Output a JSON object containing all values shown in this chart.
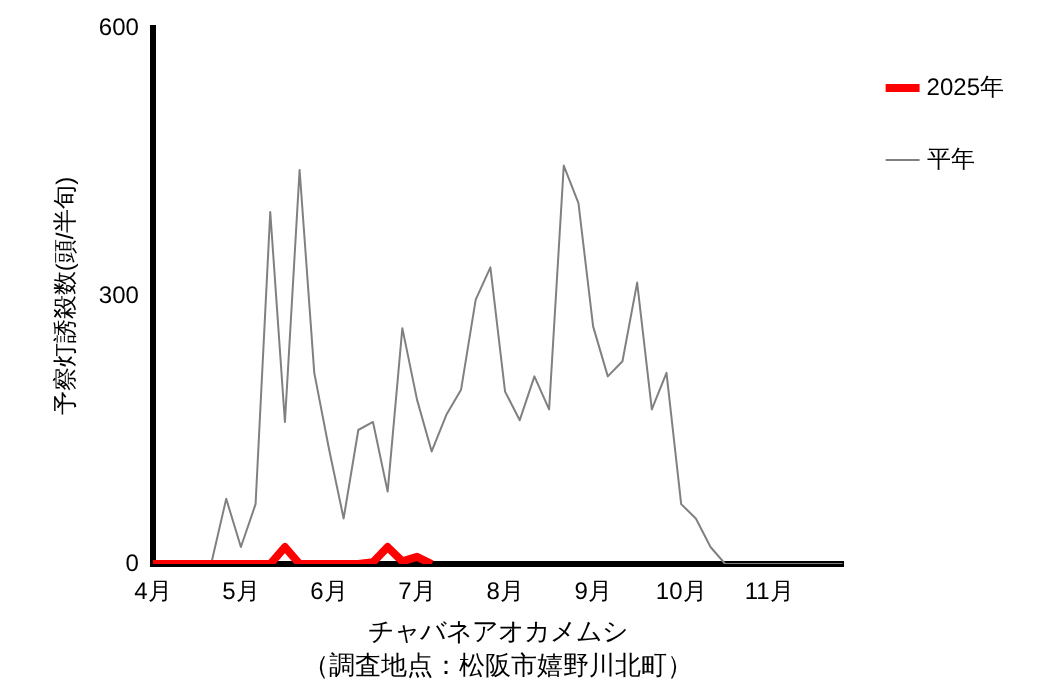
{
  "chart_data": {
    "type": "line",
    "xlabel": "チャバネアオカメムシ",
    "annotations": [
      "（調査地点：松阪市嬉野川北町）"
    ],
    "ylabel": "予察灯誘殺数(頭/半旬)",
    "categories": [
      "4月",
      null,
      null,
      null,
      null,
      null,
      "5月",
      null,
      null,
      null,
      null,
      null,
      "6月",
      null,
      null,
      null,
      null,
      null,
      "7月",
      null,
      null,
      null,
      null,
      null,
      "8月",
      null,
      null,
      null,
      null,
      null,
      "9月",
      null,
      null,
      null,
      null,
      null,
      "10月",
      null,
      null,
      null,
      null,
      null,
      "11月",
      null,
      null,
      null,
      null,
      null
    ],
    "series": [
      {
        "name": "2025年",
        "color": "#ff0000",
        "values": [
          0,
          0,
          0,
          0,
          0,
          0,
          0,
          0,
          0,
          19,
          0,
          0,
          0,
          0,
          0,
          2,
          19,
          3,
          8,
          0,
          null,
          null,
          null,
          null,
          null,
          null,
          null,
          null,
          null,
          null,
          null,
          null,
          null,
          null,
          null,
          null,
          null,
          null,
          null,
          null,
          null,
          null,
          null,
          null,
          null,
          null,
          null,
          null
        ]
      },
      {
        "name": "平年",
        "color": "#808080",
        "values": [
          null,
          null,
          null,
          null,
          2,
          73,
          19,
          67,
          394,
          159,
          441,
          214,
          129,
          51,
          150,
          159,
          81,
          264,
          184,
          126,
          167,
          195,
          296,
          332,
          193,
          161,
          210,
          173,
          446,
          404,
          266,
          210,
          227,
          315,
          173,
          214,
          67,
          51,
          19,
          0,
          0,
          0,
          0,
          0,
          0,
          0,
          0,
          0
        ]
      }
    ],
    "ylim": [
      0,
      600
    ],
    "yticks": [
      0,
      300,
      600
    ],
    "grid": false,
    "legend": "top right",
    "marker": "none",
    "line_style": "solid"
  }
}
